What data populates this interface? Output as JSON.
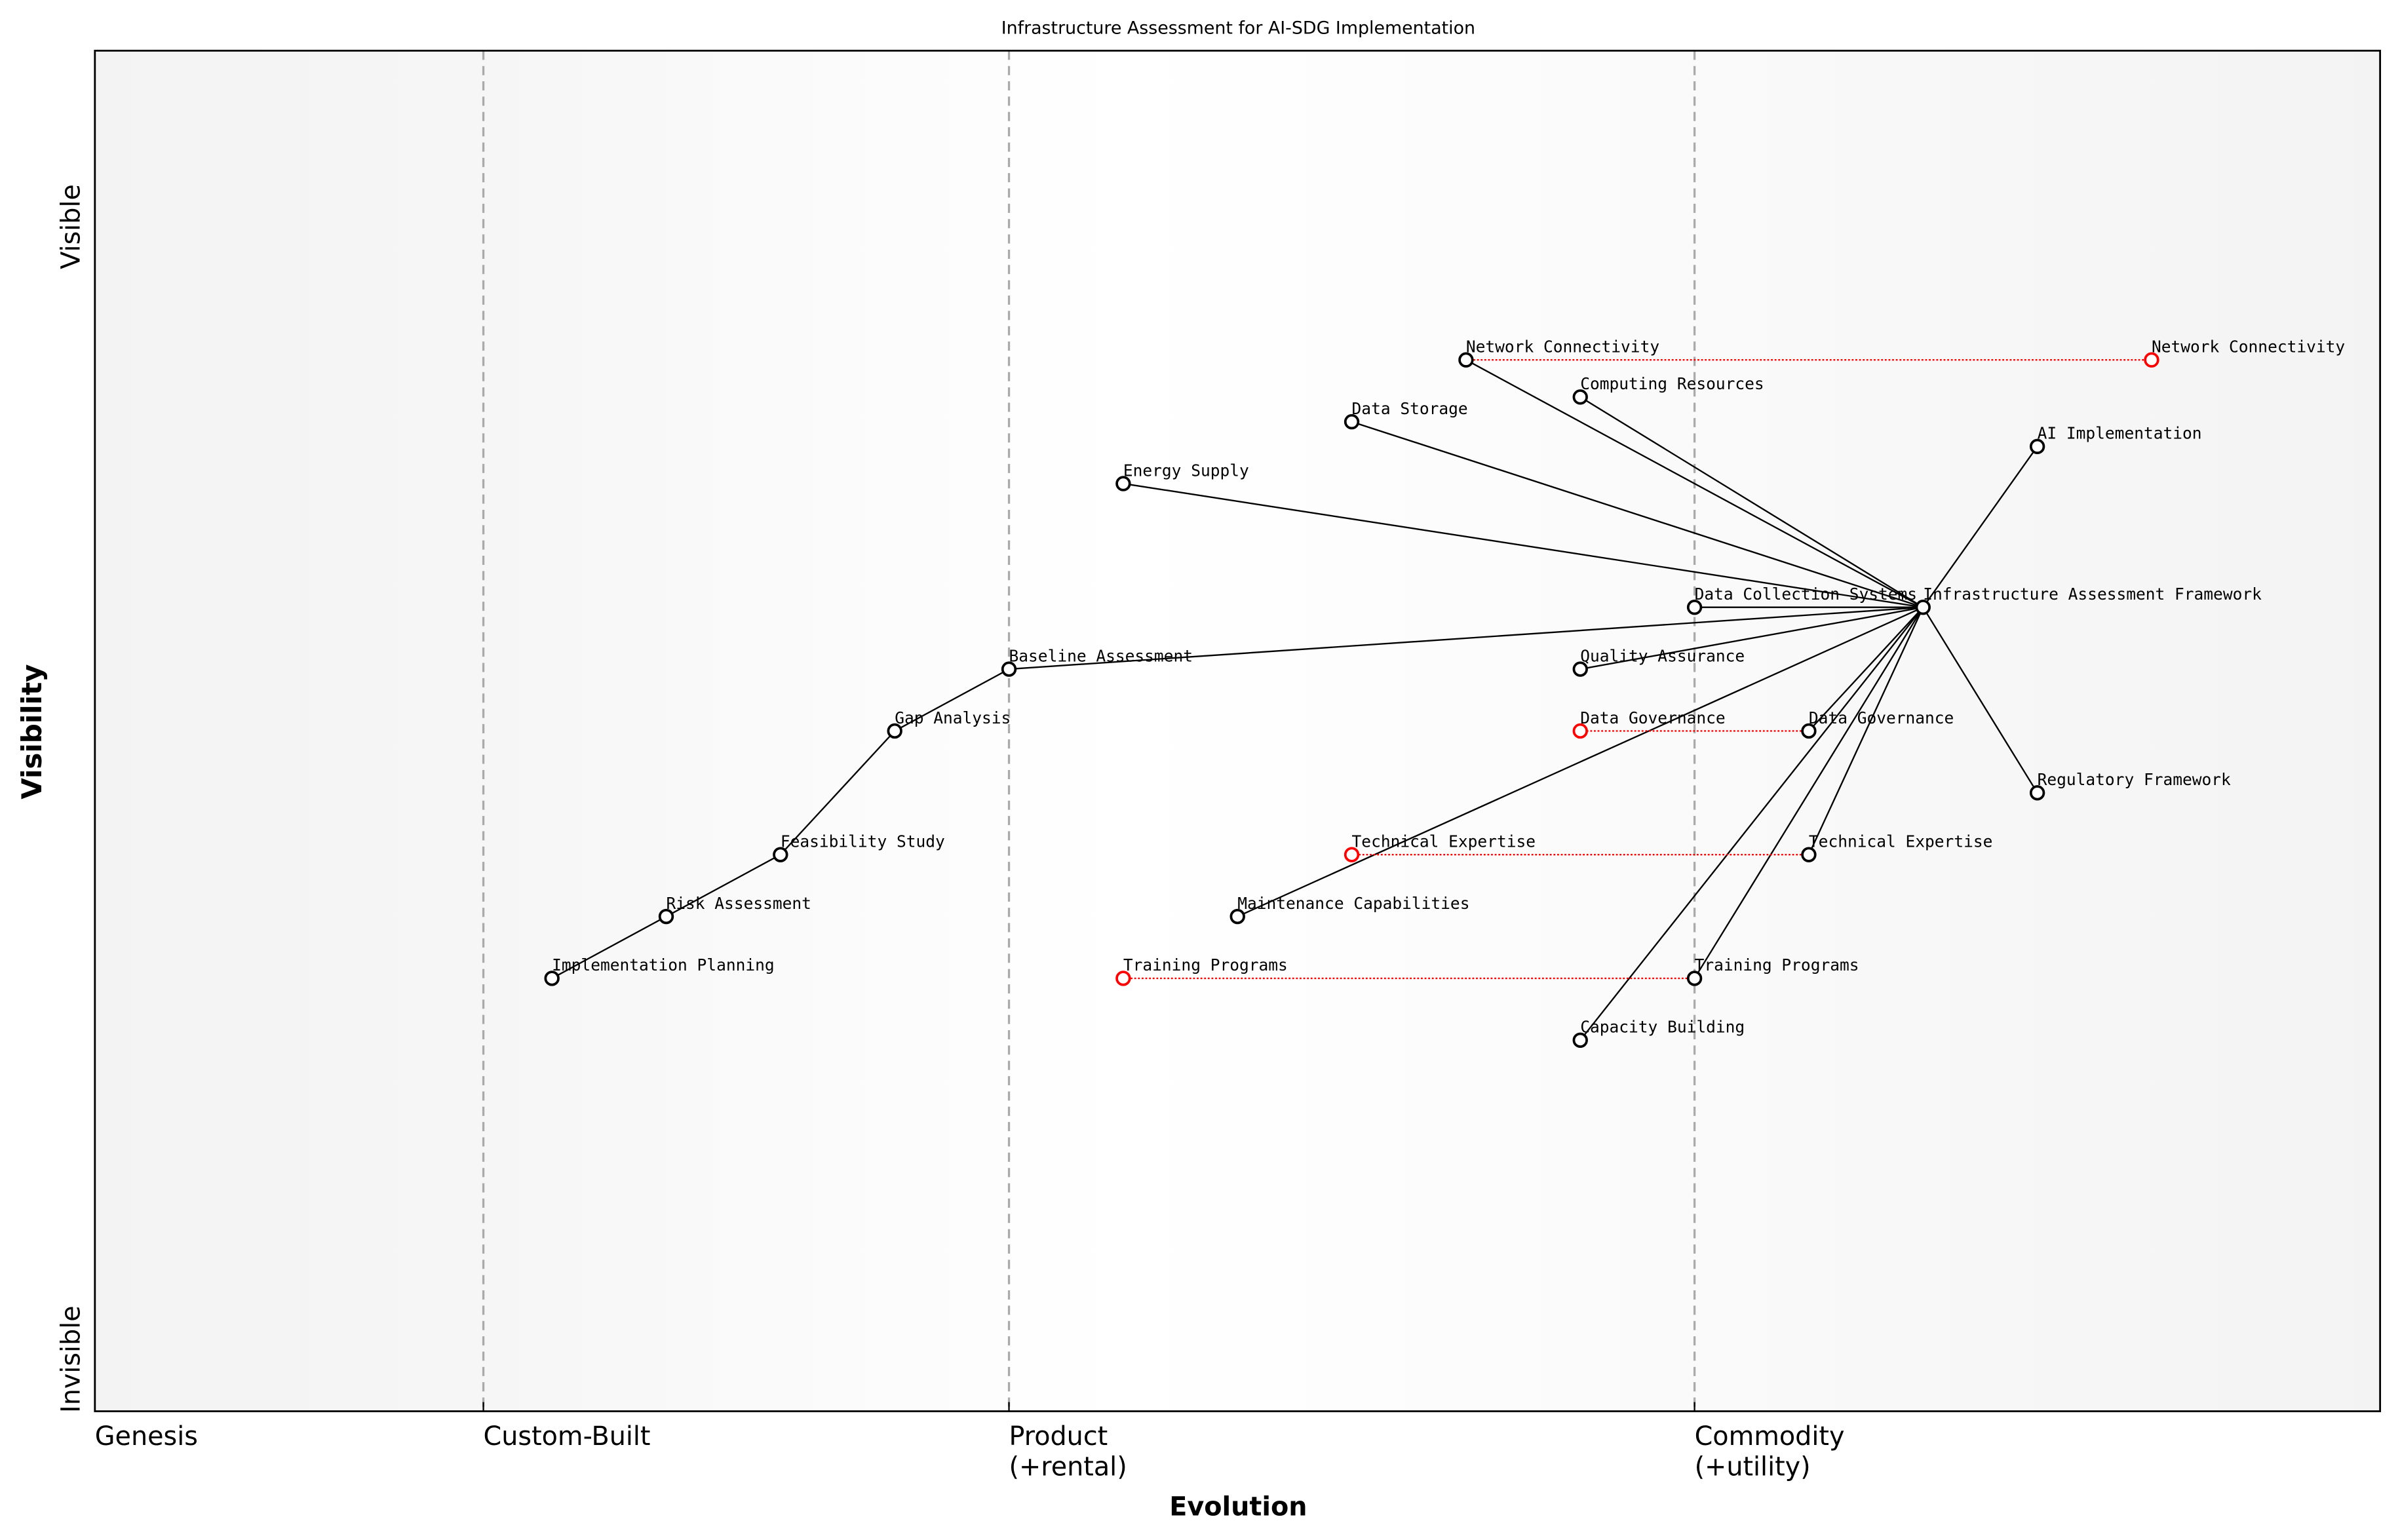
{
  "chart_data": {
    "type": "wardley-map",
    "title": "Infrastructure Assessment for AI-SDG Implementation",
    "xlabel": "Evolution",
    "ylabel": "Visibility",
    "xlim": [
      0,
      1
    ],
    "ylim": [
      0,
      1.1
    ],
    "y_tick_labels": {
      "top": "Visible",
      "bottom": "Invisible"
    },
    "stages": [
      {
        "label": "Genesis",
        "x": 0
      },
      {
        "label": "Custom-Built",
        "x": 0.17
      },
      {
        "label": "Product\n(+rental)",
        "x": 0.4
      },
      {
        "label": "Commodity\n(+utility)",
        "x": 0.7
      }
    ],
    "stage_dividers": [
      0.17,
      0.4,
      0.7
    ],
    "colors": {
      "node": "#000000",
      "evolved_node": "#ff0000",
      "evolution_line": "#ff0000",
      "divider": "#aaaaaa"
    },
    "components": [
      {
        "id": "iaf",
        "name": "Infrastructure Assessment Framework",
        "evolution": 0.8,
        "visibility": 0.65
      },
      {
        "id": "nc",
        "name": "Network Connectivity",
        "evolution": 0.6,
        "visibility": 0.85
      },
      {
        "id": "cr",
        "name": "Computing Resources",
        "evolution": 0.65,
        "visibility": 0.82
      },
      {
        "id": "ds",
        "name": "Data Storage",
        "evolution": 0.55,
        "visibility": 0.8
      },
      {
        "id": "es",
        "name": "Energy Supply",
        "evolution": 0.45,
        "visibility": 0.75
      },
      {
        "id": "ai",
        "name": "AI Implementation",
        "evolution": 0.85,
        "visibility": 0.78
      },
      {
        "id": "dcs",
        "name": "Data Collection Systems",
        "evolution": 0.7,
        "visibility": 0.65
      },
      {
        "id": "ba",
        "name": "Baseline Assessment",
        "evolution": 0.4,
        "visibility": 0.6
      },
      {
        "id": "qa",
        "name": "Quality Assurance",
        "evolution": 0.65,
        "visibility": 0.6
      },
      {
        "id": "ga",
        "name": "Gap Analysis",
        "evolution": 0.35,
        "visibility": 0.55
      },
      {
        "id": "dg",
        "name": "Data Governance",
        "evolution": 0.75,
        "visibility": 0.55
      },
      {
        "id": "rf",
        "name": "Regulatory Framework",
        "evolution": 0.85,
        "visibility": 0.5
      },
      {
        "id": "fs",
        "name": "Feasibility Study",
        "evolution": 0.3,
        "visibility": 0.45
      },
      {
        "id": "te",
        "name": "Technical Expertise",
        "evolution": 0.75,
        "visibility": 0.45
      },
      {
        "id": "ra",
        "name": "Risk Assessment",
        "evolution": 0.25,
        "visibility": 0.4
      },
      {
        "id": "mc",
        "name": "Maintenance Capabilities",
        "evolution": 0.5,
        "visibility": 0.4
      },
      {
        "id": "ip",
        "name": "Implementation Planning",
        "evolution": 0.2,
        "visibility": 0.35
      },
      {
        "id": "tp",
        "name": "Training Programs",
        "evolution": 0.7,
        "visibility": 0.35
      },
      {
        "id": "cb",
        "name": "Capacity Building",
        "evolution": 0.65,
        "visibility": 0.3
      }
    ],
    "evolved": [
      {
        "name": "Network Connectivity",
        "from": 0.6,
        "to": 0.9,
        "visibility": 0.85
      },
      {
        "name": "Data Governance",
        "from": 0.75,
        "to": 0.65,
        "visibility": 0.55
      },
      {
        "name": "Technical Expertise",
        "from": 0.75,
        "to": 0.55,
        "visibility": 0.45
      },
      {
        "name": "Training Programs",
        "from": 0.7,
        "to": 0.45,
        "visibility": 0.35
      }
    ],
    "links": [
      [
        "iaf",
        "nc"
      ],
      [
        "iaf",
        "cr"
      ],
      [
        "iaf",
        "ds"
      ],
      [
        "iaf",
        "es"
      ],
      [
        "iaf",
        "ai"
      ],
      [
        "iaf",
        "dcs"
      ],
      [
        "iaf",
        "ba"
      ],
      [
        "iaf",
        "qa"
      ],
      [
        "iaf",
        "dg"
      ],
      [
        "iaf",
        "rf"
      ],
      [
        "iaf",
        "te"
      ],
      [
        "iaf",
        "mc"
      ],
      [
        "iaf",
        "tp"
      ],
      [
        "iaf",
        "cb"
      ],
      [
        "ba",
        "ga"
      ],
      [
        "ga",
        "fs"
      ],
      [
        "fs",
        "ra"
      ],
      [
        "ra",
        "ip"
      ]
    ]
  }
}
